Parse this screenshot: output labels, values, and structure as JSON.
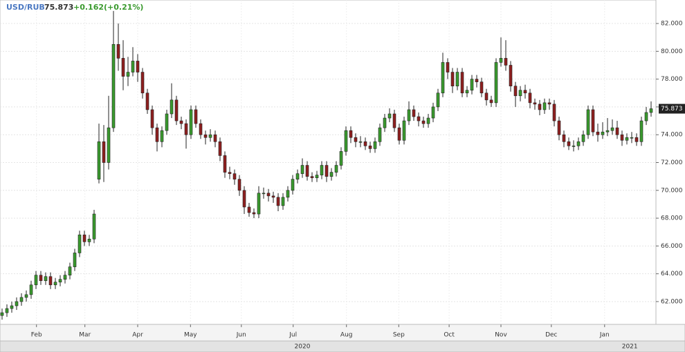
{
  "chart_data": {
    "type": "candlestick",
    "symbol": "USD/RUB",
    "last": "75.873",
    "change": "+0.162(+0.21%)",
    "up_color": "#3a9a2e",
    "down_color": "#8e1f1f",
    "grid": true,
    "open": [
      61.0,
      61.2,
      61.5,
      61.7,
      62.0,
      62.3,
      62.5,
      63.2,
      63.9,
      63.5,
      63.8,
      63.2,
      63.4,
      63.6,
      63.9,
      64.5,
      65.5,
      66.8,
      66.3,
      66.5,
      70.8,
      73.5,
      72.0,
      74.5,
      80.5,
      79.5,
      78.2,
      78.5,
      79.3,
      78.5,
      77.0,
      75.8,
      74.5,
      73.5,
      74.3,
      75.5,
      76.5,
      75.0,
      74.8,
      74.0,
      75.8,
      74.8,
      74.0,
      73.8,
      74.0,
      73.5,
      72.5,
      71.3,
      71.2,
      70.8,
      70.0,
      68.8,
      68.4,
      68.3,
      69.8,
      69.8,
      69.6,
      69.5,
      68.9,
      69.5,
      70.0,
      70.8,
      71.2,
      71.8,
      71.0,
      70.9,
      71.1,
      71.8,
      71.0,
      71.3,
      71.8,
      72.8,
      74.3,
      73.8,
      73.5,
      73.5,
      73.2,
      73.0,
      73.5,
      74.5,
      75.2,
      75.5,
      74.5,
      73.6,
      75.0,
      75.8,
      75.3,
      75.0,
      74.8,
      75.2,
      76.0,
      77.0,
      79.2,
      78.5,
      77.5,
      78.5,
      77.0,
      77.2,
      78.0,
      77.8,
      77.0,
      76.5,
      76.3,
      79.2,
      79.5,
      79.0,
      77.5,
      76.8,
      77.2,
      77.0,
      76.3,
      76.2,
      75.8,
      76.3,
      76.2,
      75.0,
      74.0,
      73.5,
      73.2,
      73.2,
      73.5,
      74.0,
      75.8,
      74.2,
      74.0,
      74.2,
      74.3,
      74.5,
      74.0,
      73.6,
      73.8,
      73.8,
      73.5,
      75.0,
      75.6
    ],
    "high": [
      61.5,
      61.8,
      62.0,
      62.3,
      62.6,
      62.8,
      63.5,
      64.2,
      64.2,
      64.1,
      64.1,
      63.7,
      63.9,
      64.2,
      64.8,
      65.8,
      67.1,
      67.1,
      66.8,
      68.6,
      74.8,
      74.7,
      76.8,
      82.9,
      82.0,
      80.8,
      79.6,
      80.3,
      79.8,
      78.8,
      77.3,
      76.1,
      74.8,
      74.6,
      75.8,
      77.7,
      76.8,
      75.3,
      75.1,
      76.1,
      76.1,
      75.1,
      74.3,
      74.4,
      74.3,
      73.8,
      72.8,
      71.7,
      71.5,
      71.1,
      70.3,
      69.1,
      68.7,
      70.3,
      70.2,
      70.1,
      69.9,
      69.8,
      69.8,
      70.3,
      71.1,
      71.5,
      72.3,
      72.1,
      71.3,
      71.4,
      72.1,
      72.1,
      71.6,
      72.1,
      73.1,
      74.6,
      74.6,
      74.1,
      73.9,
      73.8,
      73.5,
      73.8,
      74.8,
      75.5,
      75.9,
      75.8,
      74.8,
      75.3,
      76.4,
      76.1,
      75.6,
      75.3,
      75.5,
      76.3,
      77.3,
      79.9,
      79.5,
      78.8,
      78.8,
      78.8,
      77.5,
      78.3,
      78.3,
      78.1,
      77.3,
      76.8,
      79.5,
      81.0,
      80.8,
      79.3,
      77.8,
      77.5,
      77.6,
      77.3,
      76.6,
      76.5,
      76.6,
      76.6,
      76.5,
      75.3,
      74.3,
      73.8,
      73.6,
      73.8,
      74.3,
      76.1,
      76.1,
      74.8,
      74.9,
      75.2,
      75.1,
      75.0,
      74.3,
      74.1,
      74.2,
      74.1,
      75.3,
      76.0,
      76.4
    ],
    "low": [
      60.7,
      60.9,
      61.2,
      61.4,
      61.7,
      62.0,
      62.2,
      62.9,
      63.2,
      63.2,
      62.9,
      62.9,
      63.1,
      63.3,
      63.6,
      64.2,
      65.2,
      66.0,
      66.0,
      66.2,
      70.5,
      70.6,
      71.5,
      74.2,
      78.6,
      77.2,
      77.5,
      78.2,
      77.8,
      76.6,
      75.5,
      74.0,
      72.8,
      73.1,
      74.0,
      75.2,
      74.7,
      74.4,
      73.0,
      73.7,
      74.5,
      73.7,
      73.3,
      73.5,
      73.1,
      72.1,
      70.9,
      70.8,
      70.4,
      69.6,
      68.3,
      68.1,
      68.0,
      68.0,
      69.4,
      69.2,
      69.1,
      68.5,
      68.6,
      69.2,
      69.7,
      70.5,
      70.9,
      70.7,
      70.6,
      70.6,
      70.8,
      70.6,
      70.7,
      71.0,
      71.5,
      72.5,
      73.4,
      73.1,
      73.1,
      72.9,
      72.7,
      72.7,
      73.2,
      74.2,
      74.9,
      74.2,
      73.3,
      73.3,
      74.7,
      75.0,
      74.6,
      74.5,
      74.5,
      74.9,
      75.7,
      76.7,
      78.0,
      77.0,
      77.2,
      76.7,
      76.7,
      76.9,
      77.4,
      76.7,
      76.1,
      76.0,
      76.0,
      78.9,
      78.6,
      77.1,
      76.0,
      76.4,
      76.6,
      75.9,
      75.8,
      75.4,
      75.5,
      75.8,
      74.6,
      73.6,
      73.1,
      72.9,
      72.8,
      72.9,
      73.2,
      73.7,
      73.9,
      73.5,
      73.7,
      73.9,
      74.0,
      73.7,
      73.2,
      73.3,
      73.4,
      73.2,
      73.2,
      74.7,
      75.3
    ],
    "close": [
      61.2,
      61.5,
      61.7,
      62.0,
      62.3,
      62.5,
      63.2,
      63.9,
      63.5,
      63.8,
      63.2,
      63.4,
      63.6,
      63.9,
      64.5,
      65.5,
      66.8,
      66.3,
      66.5,
      68.3,
      73.5,
      72.0,
      74.5,
      80.5,
      79.5,
      78.2,
      78.5,
      79.3,
      78.5,
      77.0,
      75.8,
      74.5,
      73.5,
      74.3,
      75.5,
      76.5,
      75.0,
      74.8,
      74.0,
      75.8,
      74.8,
      74.0,
      73.8,
      74.0,
      73.5,
      72.5,
      71.3,
      71.2,
      70.8,
      70.0,
      68.8,
      68.4,
      68.3,
      69.8,
      69.8,
      69.6,
      69.5,
      68.9,
      69.5,
      70.0,
      70.8,
      71.2,
      71.8,
      71.0,
      70.9,
      71.1,
      71.8,
      71.0,
      71.3,
      71.8,
      72.8,
      74.3,
      73.8,
      73.5,
      73.5,
      73.2,
      73.0,
      73.5,
      74.5,
      75.2,
      75.5,
      74.5,
      73.6,
      75.0,
      75.8,
      75.3,
      75.0,
      74.8,
      75.2,
      76.0,
      77.0,
      79.2,
      78.5,
      77.5,
      78.5,
      77.0,
      77.2,
      78.0,
      77.8,
      77.0,
      76.5,
      76.3,
      79.2,
      79.5,
      79.0,
      77.5,
      76.8,
      77.2,
      77.0,
      76.3,
      76.2,
      75.8,
      76.3,
      76.2,
      75.0,
      74.0,
      73.5,
      73.2,
      73.2,
      73.5,
      74.0,
      75.8,
      74.2,
      74.0,
      74.2,
      74.3,
      74.5,
      74.0,
      73.6,
      73.8,
      73.8,
      73.5,
      75.0,
      75.6,
      75.87
    ],
    "xlim": [
      -0.43,
      135
    ],
    "xticks": [
      {
        "value": 7.1,
        "label": "Feb"
      },
      {
        "value": 17.1,
        "label": "Mar"
      },
      {
        "value": 28,
        "label": "Apr"
      },
      {
        "value": 38.9,
        "label": "May"
      },
      {
        "value": 49.4,
        "label": "Jun"
      },
      {
        "value": 60.1,
        "label": "Jul"
      },
      {
        "value": 71.1,
        "label": "Aug"
      },
      {
        "value": 81.9,
        "label": "Sep"
      },
      {
        "value": 92.3,
        "label": "Oct"
      },
      {
        "value": 103,
        "label": "Nov"
      },
      {
        "value": 113.4,
        "label": "Dec"
      },
      {
        "value": 124.4,
        "label": "Jan"
      }
    ],
    "year_ticks": [
      {
        "value": 62,
        "label": "2020"
      },
      {
        "value": 129.6,
        "label": "2021"
      }
    ],
    "ylim": [
      60.36,
      83.69
    ],
    "yticks": [
      {
        "value": 62,
        "label": "62.000"
      },
      {
        "value": 64,
        "label": "64.000"
      },
      {
        "value": 66,
        "label": "66.000"
      },
      {
        "value": 68,
        "label": "68.000"
      },
      {
        "value": 70,
        "label": "70.000"
      },
      {
        "value": 72,
        "label": "72.000"
      },
      {
        "value": 74,
        "label": "74.000"
      },
      {
        "value": 76,
        "label": "76.000"
      },
      {
        "value": 78,
        "label": "78.000"
      },
      {
        "value": 80,
        "label": "80.000"
      },
      {
        "value": 82,
        "label": "82.000"
      }
    ]
  }
}
